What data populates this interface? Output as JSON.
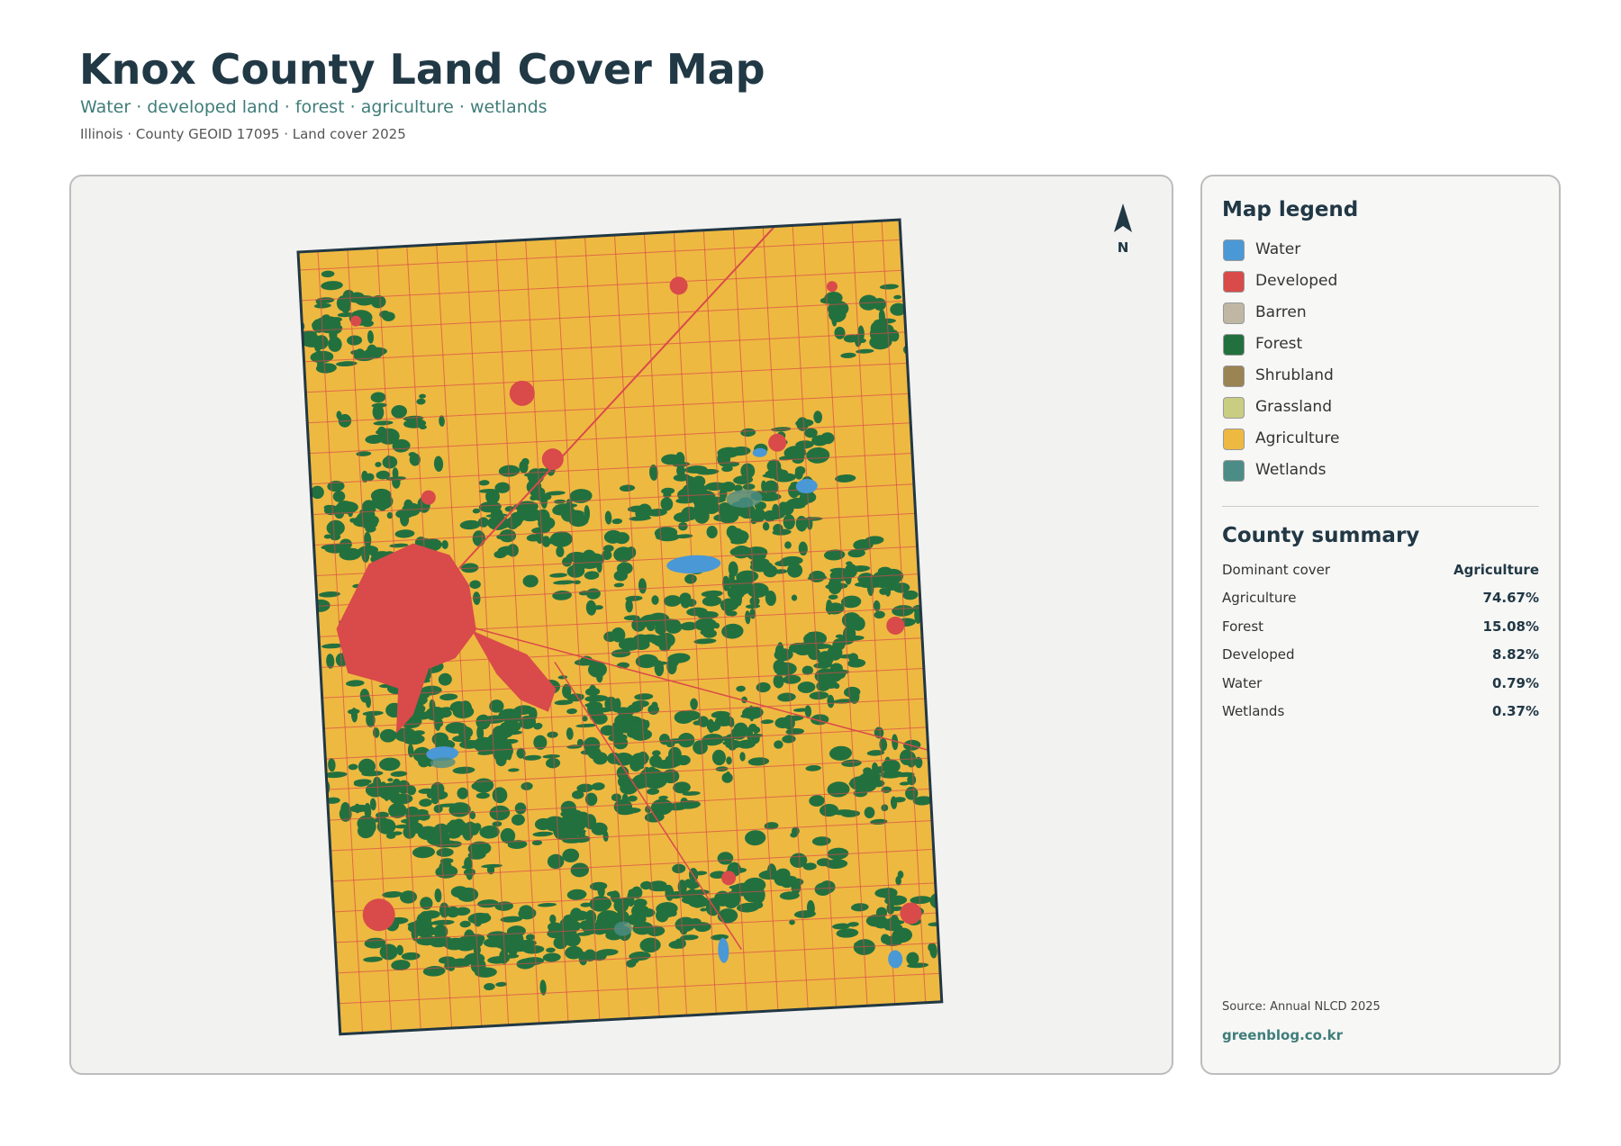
{
  "header": {
    "title": "Knox County Land Cover Map",
    "subtitle": "Water · developed land · forest · agriculture · wetlands",
    "meta": "Illinois · County GEOID 17095 · Land cover 2025"
  },
  "map": {
    "north_label": "N"
  },
  "legend": {
    "title": "Map legend",
    "items": [
      {
        "label": "Water",
        "color": "#4a98d6"
      },
      {
        "label": "Developed",
        "color": "#d94a4a"
      },
      {
        "label": "Barren",
        "color": "#bfb7a4"
      },
      {
        "label": "Forest",
        "color": "#23703f"
      },
      {
        "label": "Shrubland",
        "color": "#9b8453"
      },
      {
        "label": "Grassland",
        "color": "#c9cd82"
      },
      {
        "label": "Agriculture",
        "color": "#eeb941"
      },
      {
        "label": "Wetlands",
        "color": "#4b8d86"
      }
    ]
  },
  "summary": {
    "title": "County summary",
    "rows": [
      [
        "Dominant cover",
        "Agriculture"
      ],
      [
        "Agriculture",
        "74.67%"
      ],
      [
        "Forest",
        "15.08%"
      ],
      [
        "Developed",
        "8.82%"
      ],
      [
        "Water",
        "0.79%"
      ],
      [
        "Wetlands",
        "0.37%"
      ]
    ]
  },
  "footer": {
    "source": "Source: Annual NLCD 2025",
    "site": "greenblog.co.kr"
  }
}
